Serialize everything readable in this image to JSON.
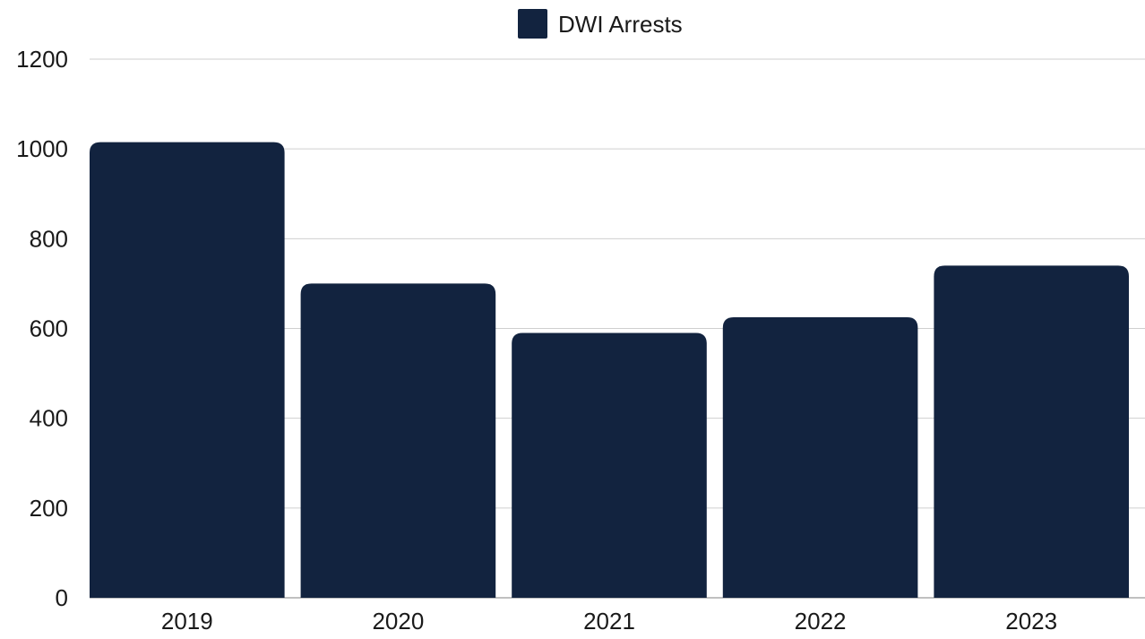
{
  "chart_data": {
    "type": "bar",
    "title": "",
    "xlabel": "",
    "ylabel": "",
    "categories": [
      "2019",
      "2020",
      "2021",
      "2022",
      "2023"
    ],
    "series": [
      {
        "name": "DWI Arrests",
        "values": [
          1015,
          700,
          590,
          625,
          740
        ]
      }
    ],
    "ylim": [
      0,
      1200
    ],
    "yticks": [
      0,
      200,
      400,
      600,
      800,
      1000,
      1200
    ],
    "ytick_labels": [
      "0",
      "200",
      "400",
      "600",
      "800",
      "1000",
      "1200"
    ],
    "grid": true,
    "legend_position": "top-center",
    "colors": {
      "bar": "#12233f",
      "grid": "#cfcfcf",
      "text": "#1a1a1a"
    }
  }
}
